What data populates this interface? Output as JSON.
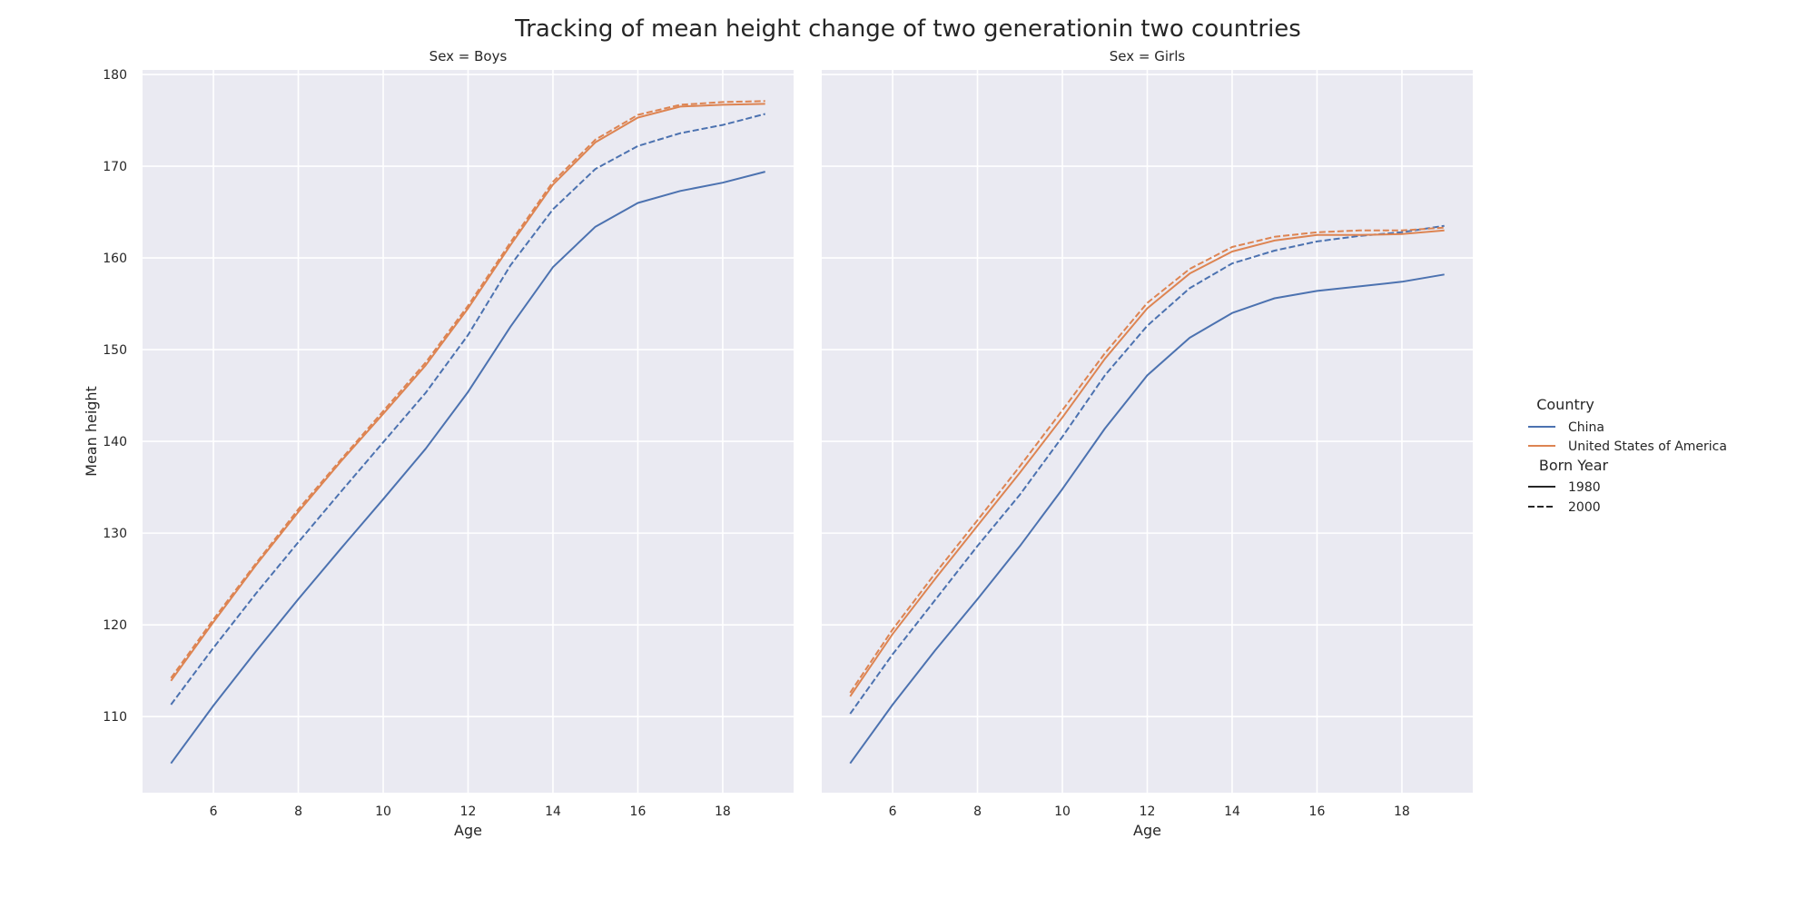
{
  "chart_data": [
    {
      "type": "line",
      "title": "Sex = Boys",
      "xlabel": "Age",
      "ylabel": "Mean height",
      "xlim": [
        4.33,
        19.67
      ],
      "ylim": [
        101.7,
        180.5
      ],
      "xticks": [
        6,
        8,
        10,
        12,
        14,
        16,
        18
      ],
      "yticks": [
        110,
        120,
        130,
        140,
        150,
        160,
        170,
        180
      ],
      "grid": true,
      "x": [
        5,
        6,
        7,
        8,
        9,
        10,
        11,
        12,
        13,
        14,
        15,
        16,
        17,
        18,
        19
      ],
      "series": [
        {
          "country": "China",
          "born_year": "1980",
          "color": "#4c72b0",
          "dash": "solid",
          "values": [
            104.9,
            111.2,
            117.1,
            122.8,
            128.3,
            133.7,
            139.2,
            145.4,
            152.5,
            159.0,
            163.4,
            166.0,
            167.3,
            168.2,
            169.4
          ]
        },
        {
          "country": "China",
          "born_year": "2000",
          "color": "#4c72b0",
          "dash": "dashed",
          "values": [
            111.3,
            117.5,
            123.4,
            129.0,
            134.5,
            139.9,
            145.3,
            151.6,
            159.2,
            165.3,
            169.7,
            172.2,
            173.6,
            174.5,
            175.7
          ]
        },
        {
          "country": "United States of America",
          "born_year": "1980",
          "color": "#dd8452",
          "dash": "solid",
          "values": [
            113.9,
            120.3,
            126.5,
            132.3,
            137.8,
            143.0,
            148.3,
            154.5,
            161.4,
            168.0,
            172.6,
            175.3,
            176.5,
            176.7,
            176.8
          ]
        },
        {
          "country": "United States of America",
          "born_year": "2000",
          "color": "#dd8452",
          "dash": "dashed",
          "values": [
            114.2,
            120.6,
            126.7,
            132.6,
            138.0,
            143.3,
            148.6,
            154.8,
            161.7,
            168.3,
            172.9,
            175.6,
            176.7,
            177.0,
            177.1
          ]
        }
      ]
    },
    {
      "type": "line",
      "title": "Sex = Girls",
      "xlabel": "Age",
      "ylabel": "",
      "xlim": [
        4.33,
        19.67
      ],
      "ylim": [
        101.7,
        180.5
      ],
      "xticks": [
        6,
        8,
        10,
        12,
        14,
        16,
        18
      ],
      "yticks": [
        110,
        120,
        130,
        140,
        150,
        160,
        170,
        180
      ],
      "grid": true,
      "x": [
        5,
        6,
        7,
        8,
        9,
        10,
        11,
        12,
        13,
        14,
        15,
        16,
        17,
        18,
        19
      ],
      "series": [
        {
          "country": "China",
          "born_year": "1980",
          "color": "#4c72b0",
          "dash": "solid",
          "values": [
            104.9,
            111.3,
            117.2,
            122.8,
            128.6,
            134.8,
            141.4,
            147.2,
            151.3,
            154.0,
            155.6,
            156.4,
            156.9,
            157.4,
            158.2
          ]
        },
        {
          "country": "China",
          "born_year": "2000",
          "color": "#4c72b0",
          "dash": "dashed",
          "values": [
            110.3,
            116.8,
            122.7,
            128.6,
            134.2,
            140.5,
            147.2,
            152.6,
            156.7,
            159.4,
            160.8,
            161.8,
            162.4,
            162.8,
            163.5
          ]
        },
        {
          "country": "United States of America",
          "born_year": "1980",
          "color": "#dd8452",
          "dash": "solid",
          "values": [
            112.2,
            119.0,
            125.0,
            130.8,
            136.6,
            142.6,
            149.0,
            154.5,
            158.3,
            160.7,
            161.9,
            162.5,
            162.5,
            162.6,
            163.0
          ]
        },
        {
          "country": "United States of America",
          "born_year": "2000",
          "color": "#dd8452",
          "dash": "dashed",
          "values": [
            112.6,
            119.5,
            125.6,
            131.4,
            137.3,
            143.4,
            149.6,
            155.1,
            158.8,
            161.2,
            162.3,
            162.8,
            163.0,
            163.0,
            163.3
          ]
        }
      ]
    }
  ],
  "figure": {
    "title": "Tracking of mean height change of two generationin two countries"
  },
  "legend": {
    "placement": "right",
    "country_title": "Country",
    "country_items": [
      {
        "label": "China",
        "color": "#4c72b0"
      },
      {
        "label": "United States of America",
        "color": "#dd8452"
      }
    ],
    "year_title": "Born Year",
    "year_items": [
      {
        "label": "1980",
        "dash": "solid",
        "color": "#262626"
      },
      {
        "label": "2000",
        "dash": "dashed",
        "color": "#262626"
      }
    ]
  }
}
